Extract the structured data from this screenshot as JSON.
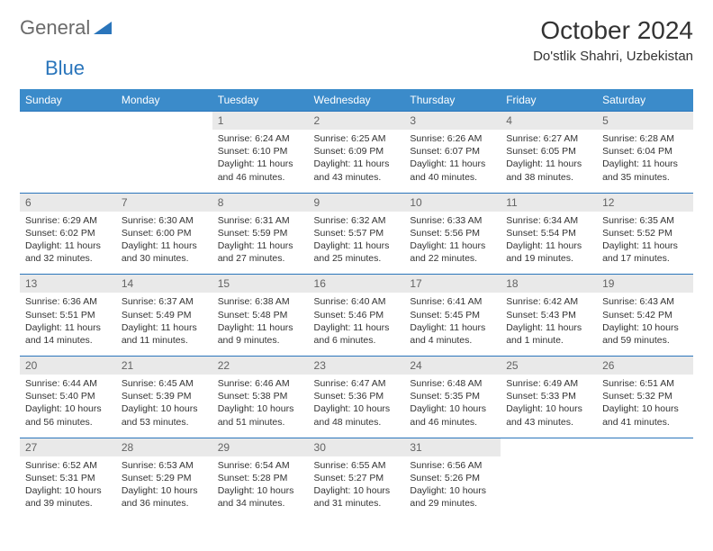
{
  "logo": {
    "part1": "General",
    "part2": "Blue"
  },
  "title": "October 2024",
  "location": "Do'stlik Shahri, Uzbekistan",
  "colors": {
    "header_bg": "#3b8bca",
    "header_text": "#ffffff",
    "daynum_bg": "#e9e9e9",
    "daynum_text": "#636363",
    "rule": "#2a75bb",
    "body_text": "#333333",
    "background": "#ffffff",
    "logo_gray": "#6a6a6a",
    "logo_blue": "#2a75bb"
  },
  "day_headers": [
    "Sunday",
    "Monday",
    "Tuesday",
    "Wednesday",
    "Thursday",
    "Friday",
    "Saturday"
  ],
  "weeks": [
    [
      null,
      null,
      {
        "n": "1",
        "sr": "Sunrise: 6:24 AM",
        "ss": "Sunset: 6:10 PM",
        "dl": "Daylight: 11 hours and 46 minutes."
      },
      {
        "n": "2",
        "sr": "Sunrise: 6:25 AM",
        "ss": "Sunset: 6:09 PM",
        "dl": "Daylight: 11 hours and 43 minutes."
      },
      {
        "n": "3",
        "sr": "Sunrise: 6:26 AM",
        "ss": "Sunset: 6:07 PM",
        "dl": "Daylight: 11 hours and 40 minutes."
      },
      {
        "n": "4",
        "sr": "Sunrise: 6:27 AM",
        "ss": "Sunset: 6:05 PM",
        "dl": "Daylight: 11 hours and 38 minutes."
      },
      {
        "n": "5",
        "sr": "Sunrise: 6:28 AM",
        "ss": "Sunset: 6:04 PM",
        "dl": "Daylight: 11 hours and 35 minutes."
      }
    ],
    [
      {
        "n": "6",
        "sr": "Sunrise: 6:29 AM",
        "ss": "Sunset: 6:02 PM",
        "dl": "Daylight: 11 hours and 32 minutes."
      },
      {
        "n": "7",
        "sr": "Sunrise: 6:30 AM",
        "ss": "Sunset: 6:00 PM",
        "dl": "Daylight: 11 hours and 30 minutes."
      },
      {
        "n": "8",
        "sr": "Sunrise: 6:31 AM",
        "ss": "Sunset: 5:59 PM",
        "dl": "Daylight: 11 hours and 27 minutes."
      },
      {
        "n": "9",
        "sr": "Sunrise: 6:32 AM",
        "ss": "Sunset: 5:57 PM",
        "dl": "Daylight: 11 hours and 25 minutes."
      },
      {
        "n": "10",
        "sr": "Sunrise: 6:33 AM",
        "ss": "Sunset: 5:56 PM",
        "dl": "Daylight: 11 hours and 22 minutes."
      },
      {
        "n": "11",
        "sr": "Sunrise: 6:34 AM",
        "ss": "Sunset: 5:54 PM",
        "dl": "Daylight: 11 hours and 19 minutes."
      },
      {
        "n": "12",
        "sr": "Sunrise: 6:35 AM",
        "ss": "Sunset: 5:52 PM",
        "dl": "Daylight: 11 hours and 17 minutes."
      }
    ],
    [
      {
        "n": "13",
        "sr": "Sunrise: 6:36 AM",
        "ss": "Sunset: 5:51 PM",
        "dl": "Daylight: 11 hours and 14 minutes."
      },
      {
        "n": "14",
        "sr": "Sunrise: 6:37 AM",
        "ss": "Sunset: 5:49 PM",
        "dl": "Daylight: 11 hours and 11 minutes."
      },
      {
        "n": "15",
        "sr": "Sunrise: 6:38 AM",
        "ss": "Sunset: 5:48 PM",
        "dl": "Daylight: 11 hours and 9 minutes."
      },
      {
        "n": "16",
        "sr": "Sunrise: 6:40 AM",
        "ss": "Sunset: 5:46 PM",
        "dl": "Daylight: 11 hours and 6 minutes."
      },
      {
        "n": "17",
        "sr": "Sunrise: 6:41 AM",
        "ss": "Sunset: 5:45 PM",
        "dl": "Daylight: 11 hours and 4 minutes."
      },
      {
        "n": "18",
        "sr": "Sunrise: 6:42 AM",
        "ss": "Sunset: 5:43 PM",
        "dl": "Daylight: 11 hours and 1 minute."
      },
      {
        "n": "19",
        "sr": "Sunrise: 6:43 AM",
        "ss": "Sunset: 5:42 PM",
        "dl": "Daylight: 10 hours and 59 minutes."
      }
    ],
    [
      {
        "n": "20",
        "sr": "Sunrise: 6:44 AM",
        "ss": "Sunset: 5:40 PM",
        "dl": "Daylight: 10 hours and 56 minutes."
      },
      {
        "n": "21",
        "sr": "Sunrise: 6:45 AM",
        "ss": "Sunset: 5:39 PM",
        "dl": "Daylight: 10 hours and 53 minutes."
      },
      {
        "n": "22",
        "sr": "Sunrise: 6:46 AM",
        "ss": "Sunset: 5:38 PM",
        "dl": "Daylight: 10 hours and 51 minutes."
      },
      {
        "n": "23",
        "sr": "Sunrise: 6:47 AM",
        "ss": "Sunset: 5:36 PM",
        "dl": "Daylight: 10 hours and 48 minutes."
      },
      {
        "n": "24",
        "sr": "Sunrise: 6:48 AM",
        "ss": "Sunset: 5:35 PM",
        "dl": "Daylight: 10 hours and 46 minutes."
      },
      {
        "n": "25",
        "sr": "Sunrise: 6:49 AM",
        "ss": "Sunset: 5:33 PM",
        "dl": "Daylight: 10 hours and 43 minutes."
      },
      {
        "n": "26",
        "sr": "Sunrise: 6:51 AM",
        "ss": "Sunset: 5:32 PM",
        "dl": "Daylight: 10 hours and 41 minutes."
      }
    ],
    [
      {
        "n": "27",
        "sr": "Sunrise: 6:52 AM",
        "ss": "Sunset: 5:31 PM",
        "dl": "Daylight: 10 hours and 39 minutes."
      },
      {
        "n": "28",
        "sr": "Sunrise: 6:53 AM",
        "ss": "Sunset: 5:29 PM",
        "dl": "Daylight: 10 hours and 36 minutes."
      },
      {
        "n": "29",
        "sr": "Sunrise: 6:54 AM",
        "ss": "Sunset: 5:28 PM",
        "dl": "Daylight: 10 hours and 34 minutes."
      },
      {
        "n": "30",
        "sr": "Sunrise: 6:55 AM",
        "ss": "Sunset: 5:27 PM",
        "dl": "Daylight: 10 hours and 31 minutes."
      },
      {
        "n": "31",
        "sr": "Sunrise: 6:56 AM",
        "ss": "Sunset: 5:26 PM",
        "dl": "Daylight: 10 hours and 29 minutes."
      },
      null,
      null
    ]
  ]
}
